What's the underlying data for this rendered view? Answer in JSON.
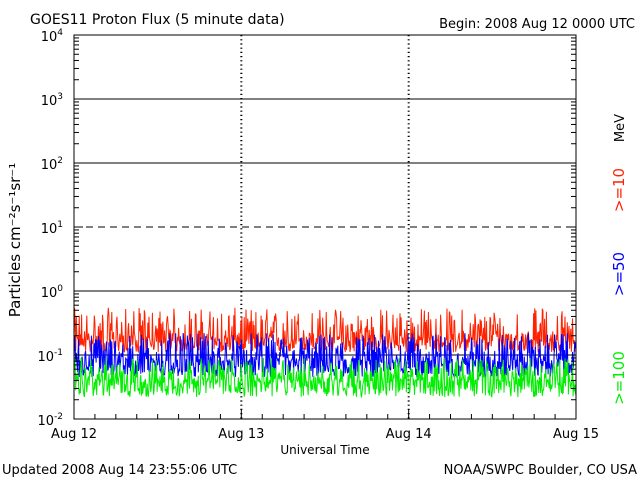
{
  "title": "GOES11 Proton Flux (5 minute data)",
  "begin": "Begin: 2008 Aug 12 0000 UTC",
  "updated": "Updated 2008 Aug 14 23:55:06 UTC",
  "source": "NOAA/SWPC Boulder, CO USA",
  "chart_data": {
    "type": "line",
    "ylabel": "Particles cm⁻²s⁻¹sr⁻¹",
    "xlabel": "Universal Time",
    "yscale": "log",
    "ylim": [
      0.01,
      10000
    ],
    "xlim": [
      0,
      3
    ],
    "x_ticks": [
      {
        "x": 0,
        "label": "Aug 12"
      },
      {
        "x": 1,
        "label": "Aug 13"
      },
      {
        "x": 2,
        "label": "Aug 14"
      },
      {
        "x": 3,
        "label": "Aug 15"
      }
    ],
    "y_ticks": [
      {
        "exp": "4",
        "base": "10"
      },
      {
        "exp": "3",
        "base": "10"
      },
      {
        "exp": "2",
        "base": "10"
      },
      {
        "exp": "1",
        "base": "10"
      },
      {
        "exp": "0",
        "base": "10"
      },
      {
        "exp": "-1",
        "base": "10"
      },
      {
        "exp": "-2",
        "base": "10"
      }
    ],
    "reference_lines": [
      {
        "y": 1000,
        "style": "solid"
      },
      {
        "y": 100,
        "style": "solid"
      },
      {
        "y": 10,
        "style": "dashed"
      },
      {
        "y": 1,
        "style": "solid"
      },
      {
        "y": 0.1,
        "style": "solid"
      }
    ],
    "unit_label": "MeV",
    "series": [
      {
        "name": ">=10",
        "color": "#ff2200",
        "baseline": 0.17,
        "range": [
          0.11,
          0.55
        ]
      },
      {
        "name": ">=50",
        "color": "#0000ff",
        "baseline": 0.08,
        "range": [
          0.045,
          0.22
        ]
      },
      {
        "name": ">=100",
        "color": "#00ee00",
        "baseline": 0.04,
        "range": [
          0.022,
          0.09
        ]
      }
    ]
  }
}
